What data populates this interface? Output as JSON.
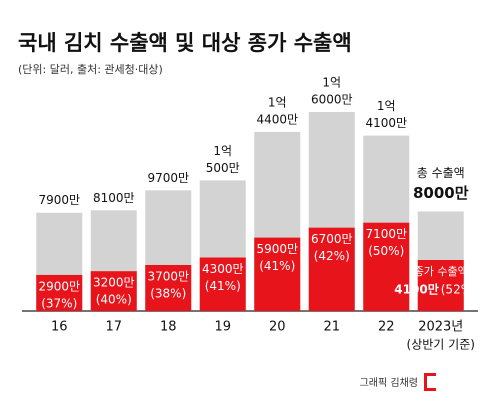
{
  "chart_data": {
    "type": "bar",
    "title": "국내 김치 수출액 및 대상 종가 수출액",
    "subtitle": "(단위: 달러, 출처: 관세청·대상)",
    "categories": [
      "16",
      "17",
      "18",
      "19",
      "20",
      "21",
      "22",
      "2023년"
    ],
    "x_note": "(상반기 기준)",
    "series": [
      {
        "name": "총 수출액",
        "color": "#d3d3d3",
        "values": [
          7900,
          8100,
          9700,
          10500,
          14400,
          16000,
          14100,
          8000
        ],
        "value_labels": [
          [
            "7900만"
          ],
          [
            "8100만"
          ],
          [
            "9700만"
          ],
          [
            "1억",
            "500만"
          ],
          [
            "1억",
            "4400만"
          ],
          [
            "1억",
            "6000만"
          ],
          [
            "1억",
            "4100만"
          ],
          [
            "8000만"
          ]
        ]
      },
      {
        "name": "종가 수출액",
        "color": "#e8141c",
        "values": [
          2900,
          3200,
          3700,
          4300,
          5900,
          6700,
          7100,
          4100
        ],
        "value_labels": [
          [
            "2900만",
            "(37%)"
          ],
          [
            "3200만",
            "(40%)"
          ],
          [
            "3700만",
            "(38%)"
          ],
          [
            "4300만",
            "(41%)"
          ],
          [
            "5900만",
            "(41%)"
          ],
          [
            "6700만",
            "(42%)"
          ],
          [
            "7100만",
            "(50%)"
          ],
          [
            "4100만",
            "(52%)"
          ]
        ]
      }
    ],
    "credit": "그래픽 김채령"
  }
}
